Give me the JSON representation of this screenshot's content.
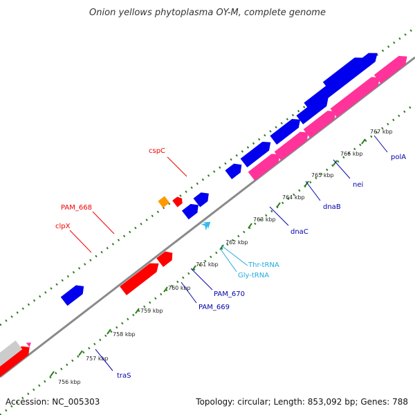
{
  "title": "Onion yellows phytoplasma OY-M, complete genome",
  "footer": {
    "accession": "Accession: NC_005303",
    "summary": "Topology: circular; Length: 853,092 bp; Genes: 788"
  },
  "colors": {
    "backbone": "#8a8a8a",
    "tick": "#2e7d1f",
    "forward_gene": "#0000ee",
    "reverse_gene": "#ff0000",
    "pseudo": "#ff3399",
    "rna": "#33bbee",
    "other": "#ff9900",
    "gray_gene": "#cccccc",
    "label_red": "#ee0000",
    "label_blue": "#0000aa",
    "label_cyan": "#22aadd"
  },
  "kbp_ticks": [
    "756 kbp",
    "757 kbp",
    "758 kbp",
    "759 kbp",
    "760 kbp",
    "761 kbp",
    "762 kbp",
    "763 kbp",
    "764 kbp",
    "765 kbp",
    "766 kbp",
    "767 kbp"
  ],
  "gene_labels": [
    {
      "id": "cspC",
      "text": "cspC",
      "color_key": "label_red"
    },
    {
      "id": "PAM_668",
      "text": "PAM_668",
      "color_key": "label_red"
    },
    {
      "id": "clpX",
      "text": "clpX",
      "color_key": "label_red"
    },
    {
      "id": "polA",
      "text": "polA",
      "color_key": "label_blue"
    },
    {
      "id": "nei",
      "text": "nei",
      "color_key": "label_blue"
    },
    {
      "id": "dnaB",
      "text": "dnaB",
      "color_key": "label_blue"
    },
    {
      "id": "dnaC",
      "text": "dnaC",
      "color_key": "label_blue"
    },
    {
      "id": "Thr-tRNA",
      "text": "Thr-tRNA",
      "color_key": "label_cyan"
    },
    {
      "id": "Gly-tRNA",
      "text": "Gly-tRNA",
      "color_key": "label_cyan"
    },
    {
      "id": "PAM_670",
      "text": "PAM_670",
      "color_key": "label_blue"
    },
    {
      "id": "PAM_669",
      "text": "PAM_669",
      "color_key": "label_blue"
    },
    {
      "id": "traS",
      "text": "traS",
      "color_key": "label_blue"
    }
  ]
}
